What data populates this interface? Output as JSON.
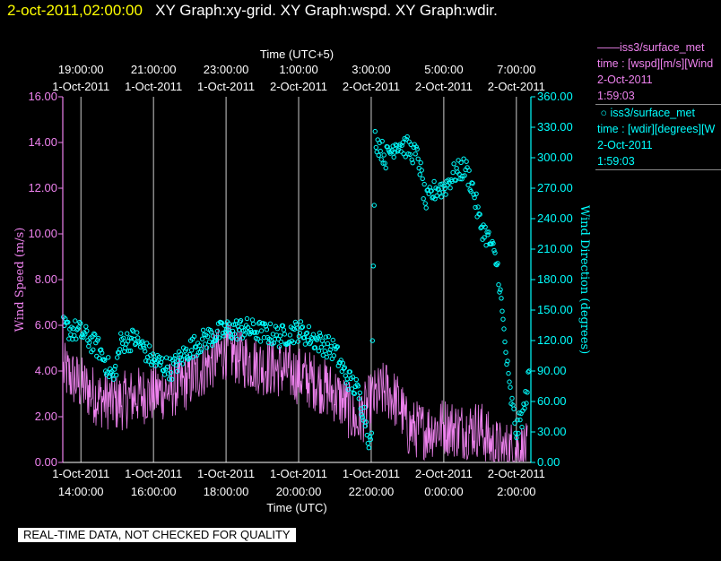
{
  "header": {
    "datetime": "2-oct-2011,02:00:00",
    "graphs": "XY Graph:xy-grid.  XY Graph:wspd.  XY Graph:wdir."
  },
  "legend": {
    "series1": {
      "name": "iss3/surface_met",
      "line2": "time : [wspd][m/s][Wind",
      "line3": "2-Oct-2011",
      "line4": "1:59:03"
    },
    "series2": {
      "name": "iss3/surface_met",
      "line2": "time : [wdir][degrees][W",
      "line3": "2-Oct-2011",
      "line4": "1:59:03"
    }
  },
  "banner": "REAL-TIME DATA, NOT CHECKED FOR QUALITY",
  "chart_data": {
    "type": "line",
    "x_label_bottom": "Time (UTC)",
    "x_label_top": "Time (UTC+5)",
    "ylabel_left": "Wind Speed (m/s)",
    "ylabel_right": "Wind Direction (degrees)",
    "xlim_hours": [
      13.5,
      26.4
    ],
    "ylim_left": [
      0,
      16
    ],
    "ylim_right": [
      0,
      360
    ],
    "grid_vertical": true,
    "bottom_ticks": [
      {
        "h": 14,
        "date": "1-Oct-2011",
        "time": "14:00:00"
      },
      {
        "h": 16,
        "date": "1-Oct-2011",
        "time": "16:00:00"
      },
      {
        "h": 18,
        "date": "1-Oct-2011",
        "time": "18:00:00"
      },
      {
        "h": 20,
        "date": "1-Oct-2011",
        "time": "20:00:00"
      },
      {
        "h": 22,
        "date": "1-Oct-2011",
        "time": "22:00:00"
      },
      {
        "h": 24,
        "date": "2-Oct-2011",
        "time": "0:00:00"
      },
      {
        "h": 26,
        "date": "2-Oct-2011",
        "time": "2:00:00"
      }
    ],
    "top_ticks": [
      {
        "h": 14,
        "time": "19:00:00",
        "date": "1-Oct-2011"
      },
      {
        "h": 16,
        "time": "21:00:00",
        "date": "1-Oct-2011"
      },
      {
        "h": 18,
        "time": "23:00:00",
        "date": "1-Oct-2011"
      },
      {
        "h": 20,
        "time": "1:00:00",
        "date": "2-Oct-2011"
      },
      {
        "h": 22,
        "time": "3:00:00",
        "date": "2-Oct-2011"
      },
      {
        "h": 24,
        "time": "5:00:00",
        "date": "2-Oct-2011"
      },
      {
        "h": 26,
        "time": "7:00:00",
        "date": "2-Oct-2011"
      }
    ],
    "left_ticks": [
      "0.00",
      "2.00",
      "4.00",
      "6.00",
      "8.00",
      "10.00",
      "12.00",
      "14.00",
      "16.00"
    ],
    "right_ticks": [
      "0.00",
      "30.00",
      "60.00",
      "90.00",
      "120.00",
      "150.00",
      "180.00",
      "210.00",
      "240.00",
      "270.00",
      "300.00",
      "330.00",
      "360.00"
    ],
    "series": [
      {
        "name": "iss3/surface_met wspd",
        "color": "#ee82ee",
        "style": "line",
        "trend": [
          [
            13.52,
            4.0
          ],
          [
            14.0,
            3.4
          ],
          [
            14.5,
            2.8
          ],
          [
            15.0,
            2.6
          ],
          [
            15.5,
            2.9
          ],
          [
            16.0,
            3.0
          ],
          [
            16.5,
            3.2
          ],
          [
            17.0,
            3.6
          ],
          [
            17.5,
            4.3
          ],
          [
            18.0,
            4.9
          ],
          [
            18.5,
            4.5
          ],
          [
            19.0,
            4.2
          ],
          [
            19.5,
            4.1
          ],
          [
            20.0,
            3.8
          ],
          [
            20.5,
            3.5
          ],
          [
            21.0,
            3.0
          ],
          [
            21.3,
            2.5
          ],
          [
            21.6,
            1.7
          ],
          [
            22.0,
            2.7
          ],
          [
            22.4,
            3.2
          ],
          [
            22.8,
            2.5
          ],
          [
            23.0,
            1.5
          ],
          [
            23.5,
            1.4
          ],
          [
            24.0,
            1.6
          ],
          [
            24.5,
            1.4
          ],
          [
            25.0,
            1.5
          ],
          [
            25.3,
            0.8
          ],
          [
            25.6,
            0.5
          ],
          [
            26.0,
            0.6
          ],
          [
            26.3,
            0.4
          ]
        ]
      },
      {
        "name": "iss3/surface_met wdir",
        "color": "#00ffff",
        "style": "scatter",
        "trend": [
          [
            13.52,
            133
          ],
          [
            14.0,
            128
          ],
          [
            14.5,
            112
          ],
          [
            14.9,
            82
          ],
          [
            15.1,
            118
          ],
          [
            15.5,
            122
          ],
          [
            16.0,
            100
          ],
          [
            16.5,
            92
          ],
          [
            17.0,
            112
          ],
          [
            17.5,
            123
          ],
          [
            18.0,
            130
          ],
          [
            18.5,
            132
          ],
          [
            19.0,
            128
          ],
          [
            19.5,
            124
          ],
          [
            20.0,
            130
          ],
          [
            20.5,
            120
          ],
          [
            21.0,
            110
          ],
          [
            21.3,
            85
          ],
          [
            21.6,
            72
          ],
          [
            21.8,
            50
          ],
          [
            22.0,
            12
          ],
          [
            22.1,
            320
          ],
          [
            22.4,
            300
          ],
          [
            22.7,
            315
          ],
          [
            23.0,
            310
          ],
          [
            23.3,
            300
          ],
          [
            23.5,
            255
          ],
          [
            23.8,
            270
          ],
          [
            24.0,
            270
          ],
          [
            24.3,
            285
          ],
          [
            24.6,
            290
          ],
          [
            24.8,
            270
          ],
          [
            25.0,
            235
          ],
          [
            25.3,
            215
          ],
          [
            25.5,
            190
          ],
          [
            25.6,
            150
          ],
          [
            25.8,
            75
          ],
          [
            26.0,
            30
          ],
          [
            26.2,
            50
          ],
          [
            26.35,
            85
          ]
        ]
      }
    ]
  }
}
